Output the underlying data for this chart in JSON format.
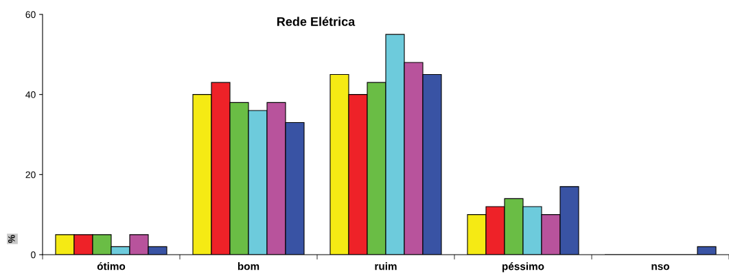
{
  "chart_data": {
    "type": "bar",
    "title": "Rede Elétrica",
    "ylabel": "%",
    "categories": [
      "ótimo",
      "bom",
      "ruim",
      "péssimo",
      "nso"
    ],
    "series": [
      {
        "color": "#f5ea14",
        "values": [
          5,
          40,
          45,
          10,
          0
        ]
      },
      {
        "color": "#ee2228",
        "values": [
          5,
          43,
          40,
          12,
          0
        ]
      },
      {
        "color": "#6abd45",
        "values": [
          5,
          38,
          43,
          14,
          0
        ]
      },
      {
        "color": "#6dcbdc",
        "values": [
          2,
          36,
          55,
          12,
          0
        ]
      },
      {
        "color": "#b8539c",
        "values": [
          5,
          38,
          48,
          10,
          0
        ]
      },
      {
        "color": "#3953a4",
        "values": [
          2,
          33,
          45,
          17,
          2
        ]
      }
    ],
    "ylim": [
      0,
      60
    ],
    "yticks": [
      0,
      20,
      40,
      60
    ],
    "grid": false,
    "legend": false
  }
}
